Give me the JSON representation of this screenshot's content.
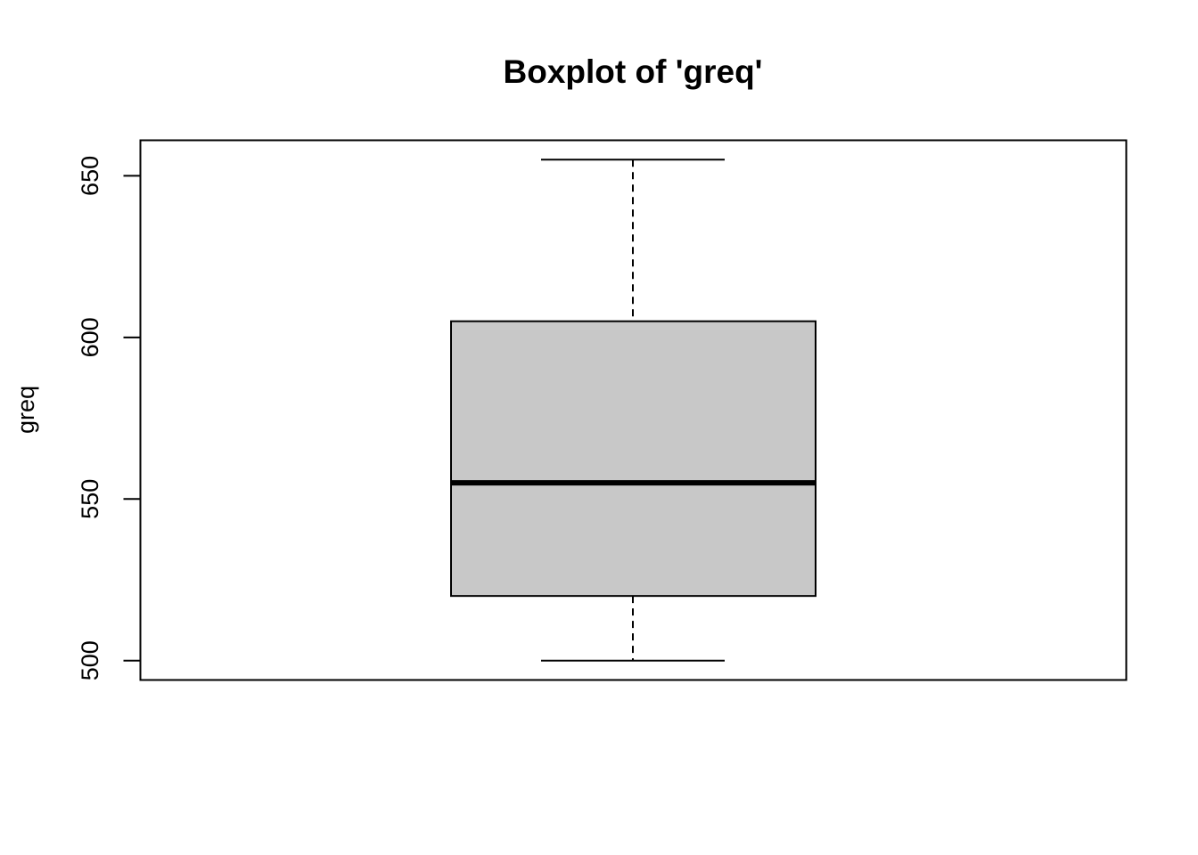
{
  "chart_data": {
    "type": "boxplot",
    "title": "Boxplot of 'greq'",
    "xlabel": "",
    "ylabel": "greq",
    "ylim": [
      494,
      661
    ],
    "yticks": [
      500,
      550,
      600,
      650
    ],
    "series": [
      {
        "min": 500,
        "q1": 520,
        "median": 555,
        "q3": 605,
        "max": 655
      }
    ],
    "colors": {
      "box_fill": "#c8c8c8",
      "stroke": "#000000"
    },
    "grid": false
  }
}
